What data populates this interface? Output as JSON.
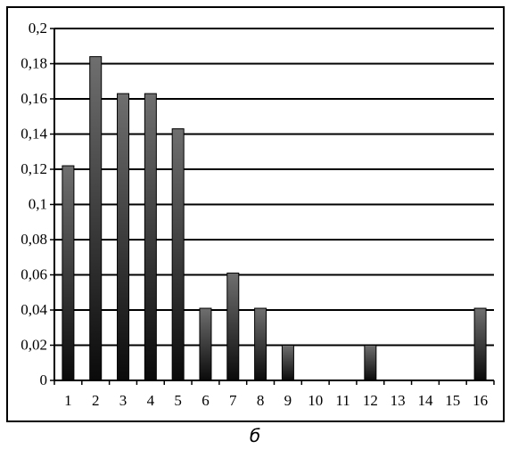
{
  "chart_data": {
    "type": "bar",
    "categories": [
      "1",
      "2",
      "3",
      "4",
      "5",
      "6",
      "7",
      "8",
      "9",
      "10",
      "11",
      "12",
      "13",
      "14",
      "15",
      "16"
    ],
    "values": [
      0.122,
      0.184,
      0.163,
      0.163,
      0.143,
      0.041,
      0.061,
      0.041,
      0.02,
      0,
      0,
      0.02,
      0,
      0,
      0,
      0.041
    ],
    "yticks": [
      "0",
      "0,02",
      "0,04",
      "0,06",
      "0,08",
      "0,1",
      "0,12",
      "0,14",
      "0,16",
      "0,18",
      "0,2"
    ],
    "ylim": [
      0,
      0.2
    ],
    "grid": true,
    "legend": "none",
    "caption": "б",
    "colors": {
      "bar_light": "#6f6f6f",
      "bar_dark": "#0a0a0a",
      "grid": "#000000",
      "frame": "#000000"
    }
  }
}
